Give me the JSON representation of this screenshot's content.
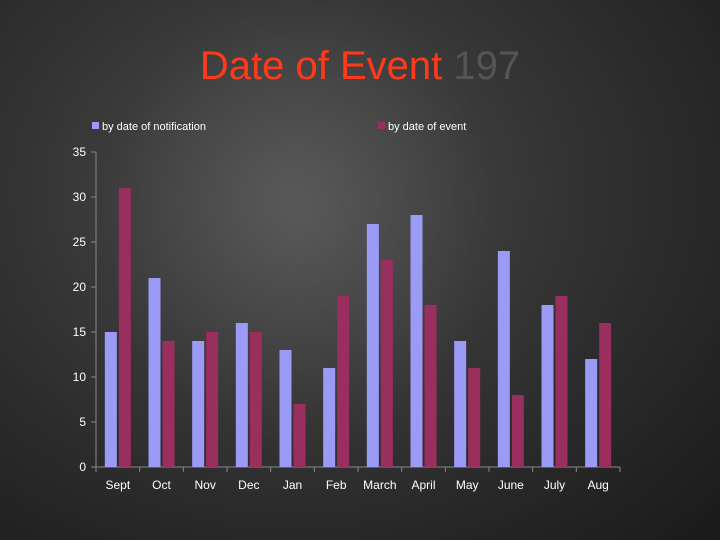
{
  "slide": {
    "title": "Date of Event",
    "title_ghost": "197"
  },
  "chart_data": {
    "type": "bar",
    "categories": [
      "Sept",
      "Oct",
      "Nov",
      "Dec",
      "Jan",
      "Feb",
      "March",
      "April",
      "May",
      "June",
      "July",
      "Aug"
    ],
    "series": [
      {
        "name": "by date of notification",
        "color": "#9b9bf5",
        "values": [
          15,
          21,
          14,
          16,
          13,
          11,
          27,
          28,
          14,
          24,
          18,
          12
        ]
      },
      {
        "name": "by date of event",
        "color": "#9a2e5e",
        "values": [
          31,
          14,
          15,
          15,
          7,
          19,
          23,
          18,
          11,
          8,
          19,
          16
        ]
      }
    ],
    "ylim": [
      0,
      35
    ],
    "yticks": [
      0,
      5,
      10,
      15,
      20,
      25,
      30,
      35
    ],
    "legend_position": "top",
    "grid": false
  }
}
